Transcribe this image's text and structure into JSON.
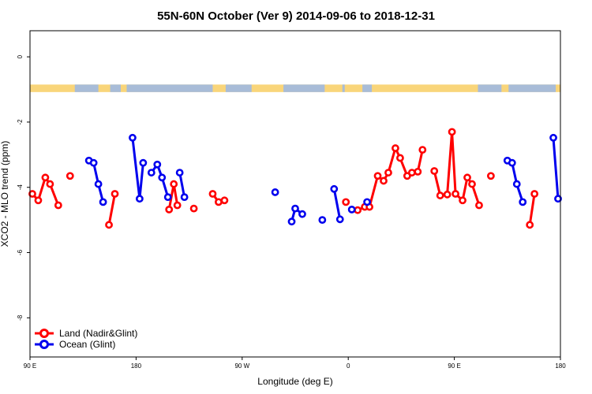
{
  "chart_data": {
    "type": "line",
    "title": "55N-60N October (Ver 9)   2014-09-06 to 2018-12-31",
    "xlabel": "Longitude (deg E)",
    "ylabel": "XCO2 - MLO trend (ppm)",
    "x_axis_note": "shifted longitude: 90 E at left through 180, 90 W, 0, 90 E, 180 at right",
    "xlim": [
      90,
      540
    ],
    "ylim": [
      -9.2,
      0.8
    ],
    "x_ticks": [
      {
        "value": 90,
        "label": "90 E"
      },
      {
        "value": 180,
        "label": "180"
      },
      {
        "value": 270,
        "label": "90 W"
      },
      {
        "value": 360,
        "label": "0"
      },
      {
        "value": 450,
        "label": "90 E"
      },
      {
        "value": 540,
        "label": "180"
      }
    ],
    "y_ticks": [
      {
        "value": 0,
        "label": "0"
      },
      {
        "value": -2,
        "label": "-2"
      },
      {
        "value": -4,
        "label": "-4"
      },
      {
        "value": -6,
        "label": "-6"
      },
      {
        "value": -8,
        "label": "-8"
      }
    ],
    "land_band": {
      "y_top": -0.85,
      "y_bottom": -1.08,
      "land_color": "#f9d57a",
      "ocean_color": "#a8bcd8"
    },
    "legend": {
      "position": "bottom-left"
    },
    "series": [
      {
        "name": "Land (Nadir&Glint)",
        "color": "#ff0000",
        "segments": [
          [
            [
              92,
              -4.2
            ],
            [
              97,
              -4.4
            ],
            [
              103,
              -3.7
            ],
            [
              107,
              -3.9
            ],
            [
              114,
              -4.55
            ]
          ],
          [
            [
              124,
              -3.65
            ]
          ],
          [
            [
              157,
              -5.15
            ],
            [
              162,
              -4.2
            ]
          ],
          [
            [
              208,
              -4.68
            ],
            [
              212,
              -3.9
            ],
            [
              215,
              -4.55
            ]
          ],
          [
            [
              229,
              -4.65
            ]
          ],
          [
            [
              245,
              -4.2
            ],
            [
              250,
              -4.45
            ],
            [
              255,
              -4.4
            ]
          ],
          [
            [
              358,
              -4.45
            ]
          ],
          [
            [
              368,
              -4.7
            ],
            [
              374,
              -4.6
            ],
            [
              378,
              -4.6
            ],
            [
              385,
              -3.65
            ],
            [
              390,
              -3.8
            ],
            [
              394,
              -3.55
            ],
            [
              400,
              -2.8
            ],
            [
              404,
              -3.1
            ],
            [
              410,
              -3.65
            ],
            [
              414,
              -3.55
            ],
            [
              419,
              -3.52
            ],
            [
              423,
              -2.85
            ]
          ],
          [
            [
              433,
              -3.5
            ],
            [
              438,
              -4.25
            ],
            [
              444,
              -4.22
            ],
            [
              448,
              -2.3
            ],
            [
              451,
              -4.2
            ],
            [
              457,
              -4.4
            ],
            [
              461,
              -3.7
            ],
            [
              465,
              -3.9
            ],
            [
              471,
              -4.55
            ]
          ],
          [
            [
              481,
              -3.65
            ]
          ],
          [
            [
              514,
              -5.15
            ],
            [
              518,
              -4.2
            ]
          ]
        ]
      },
      {
        "name": "Ocean (Glint)",
        "color": "#0000ee",
        "segments": [
          [
            [
              140,
              -3.18
            ],
            [
              144,
              -3.25
            ],
            [
              148,
              -3.9
            ],
            [
              152,
              -4.45
            ]
          ],
          [
            [
              177,
              -2.48
            ],
            [
              183,
              -4.35
            ],
            [
              186,
              -3.25
            ]
          ],
          [
            [
              193,
              -3.55
            ],
            [
              198,
              -3.3
            ],
            [
              202,
              -3.7
            ],
            [
              207,
              -4.3
            ]
          ],
          [
            [
              217,
              -3.55
            ],
            [
              221,
              -4.3
            ]
          ],
          [
            [
              298,
              -4.15
            ]
          ],
          [
            [
              312,
              -5.05
            ],
            [
              315,
              -4.65
            ],
            [
              321,
              -4.82
            ]
          ],
          [
            [
              338,
              -5.0
            ]
          ],
          [
            [
              348,
              -4.05
            ],
            [
              353,
              -4.98
            ]
          ],
          [
            [
              363,
              -4.68
            ]
          ],
          [
            [
              376,
              -4.45
            ]
          ],
          [
            [
              495,
              -3.18
            ],
            [
              499,
              -3.25
            ],
            [
              503,
              -3.9
            ],
            [
              508,
              -4.45
            ]
          ],
          [
            [
              534,
              -2.48
            ],
            [
              538,
              -4.35
            ]
          ]
        ]
      }
    ]
  }
}
